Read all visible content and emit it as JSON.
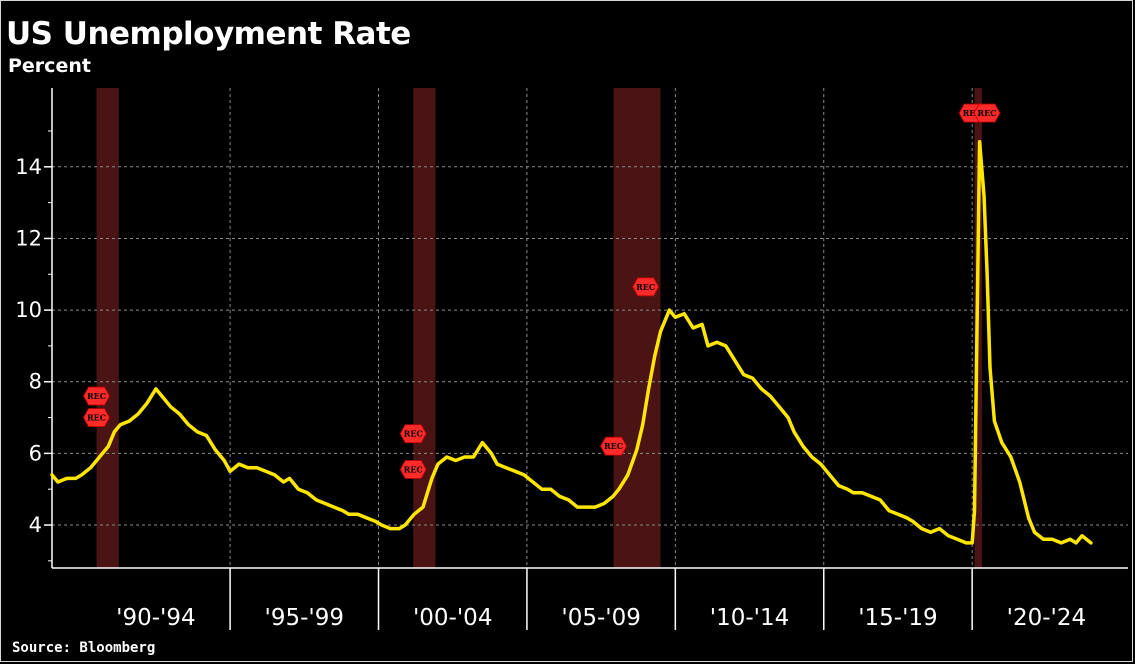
{
  "header": {
    "title": "US Unemployment Rate",
    "subtitle": "Percent"
  },
  "footer": {
    "source": "Source: Bloomberg"
  },
  "colors": {
    "background": "#000000",
    "line": "#ffe600",
    "recession_shade": "#4a1414",
    "rec_marker": "#ff2a2a",
    "grid": "#8a8a8a"
  },
  "chart_data": {
    "type": "line",
    "title": "US Unemployment Rate",
    "ylabel": "Percent",
    "xlabel": "",
    "ylim": [
      2.8,
      16.2
    ],
    "xlim": [
      1989.0,
      2025.25
    ],
    "y_ticks": [
      4,
      6,
      8,
      10,
      12,
      14
    ],
    "x_period_labels": [
      "'90-'94",
      "'95-'99",
      "'00-'04",
      "'05-'09",
      "'10-'14",
      "'15-'19",
      "'20-'24"
    ],
    "x_period_dividers": [
      1995,
      2000,
      2005,
      2010,
      2015,
      2020
    ],
    "grid": true,
    "recessions": [
      [
        1990.5,
        1991.25
      ],
      [
        2001.17,
        2001.92
      ],
      [
        2007.92,
        2009.5
      ],
      [
        2020.08,
        2020.33
      ]
    ],
    "annotations": [
      {
        "label": "REC",
        "x": 1990.5,
        "y": 7.6
      },
      {
        "label": "REC",
        "x": 1990.5,
        "y": 7.0
      },
      {
        "label": "REC",
        "x": 2001.17,
        "y": 6.55
      },
      {
        "label": "REC",
        "x": 2001.17,
        "y": 5.55
      },
      {
        "label": "REC",
        "x": 2007.92,
        "y": 6.2
      },
      {
        "label": "REC",
        "x": 2009.0,
        "y": 10.65
      },
      {
        "label": "REC",
        "x": 2020.0,
        "y": 15.5
      },
      {
        "label": "REC",
        "x": 2020.5,
        "y": 15.5
      }
    ],
    "series": [
      {
        "values": [
          [
            1989.0,
            5.4
          ],
          [
            1989.2,
            5.2
          ],
          [
            1989.5,
            5.3
          ],
          [
            1989.8,
            5.3
          ],
          [
            1990.0,
            5.4
          ],
          [
            1990.3,
            5.6
          ],
          [
            1990.6,
            5.9
          ],
          [
            1990.9,
            6.2
          ],
          [
            1991.1,
            6.6
          ],
          [
            1991.3,
            6.8
          ],
          [
            1991.6,
            6.9
          ],
          [
            1991.9,
            7.1
          ],
          [
            1992.2,
            7.4
          ],
          [
            1992.5,
            7.8
          ],
          [
            1992.8,
            7.5
          ],
          [
            1993.0,
            7.3
          ],
          [
            1993.3,
            7.1
          ],
          [
            1993.6,
            6.8
          ],
          [
            1993.9,
            6.6
          ],
          [
            1994.2,
            6.5
          ],
          [
            1994.5,
            6.1
          ],
          [
            1994.8,
            5.8
          ],
          [
            1995.0,
            5.5
          ],
          [
            1995.3,
            5.7
          ],
          [
            1995.6,
            5.6
          ],
          [
            1995.9,
            5.6
          ],
          [
            1996.2,
            5.5
          ],
          [
            1996.5,
            5.4
          ],
          [
            1996.8,
            5.2
          ],
          [
            1997.0,
            5.3
          ],
          [
            1997.3,
            5.0
          ],
          [
            1997.6,
            4.9
          ],
          [
            1997.9,
            4.7
          ],
          [
            1998.2,
            4.6
          ],
          [
            1998.5,
            4.5
          ],
          [
            1998.8,
            4.4
          ],
          [
            1999.0,
            4.3
          ],
          [
            1999.3,
            4.3
          ],
          [
            1999.6,
            4.2
          ],
          [
            1999.9,
            4.1
          ],
          [
            2000.1,
            4.0
          ],
          [
            2000.4,
            3.9
          ],
          [
            2000.7,
            3.9
          ],
          [
            2000.9,
            4.0
          ],
          [
            2001.2,
            4.3
          ],
          [
            2001.5,
            4.5
          ],
          [
            2001.8,
            5.3
          ],
          [
            2002.0,
            5.7
          ],
          [
            2002.3,
            5.9
          ],
          [
            2002.6,
            5.8
          ],
          [
            2002.9,
            5.9
          ],
          [
            2003.2,
            5.9
          ],
          [
            2003.5,
            6.3
          ],
          [
            2003.8,
            6.0
          ],
          [
            2004.0,
            5.7
          ],
          [
            2004.3,
            5.6
          ],
          [
            2004.6,
            5.5
          ],
          [
            2004.9,
            5.4
          ],
          [
            2005.2,
            5.2
          ],
          [
            2005.5,
            5.0
          ],
          [
            2005.8,
            5.0
          ],
          [
            2006.1,
            4.8
          ],
          [
            2006.4,
            4.7
          ],
          [
            2006.7,
            4.5
          ],
          [
            2007.0,
            4.5
          ],
          [
            2007.3,
            4.5
          ],
          [
            2007.6,
            4.6
          ],
          [
            2007.9,
            4.8
          ],
          [
            2008.1,
            5.0
          ],
          [
            2008.4,
            5.4
          ],
          [
            2008.7,
            6.1
          ],
          [
            2008.9,
            6.8
          ],
          [
            2009.1,
            7.8
          ],
          [
            2009.3,
            8.7
          ],
          [
            2009.5,
            9.4
          ],
          [
            2009.8,
            10.0
          ],
          [
            2010.0,
            9.8
          ],
          [
            2010.3,
            9.9
          ],
          [
            2010.6,
            9.5
          ],
          [
            2010.9,
            9.6
          ],
          [
            2011.1,
            9.0
          ],
          [
            2011.4,
            9.1
          ],
          [
            2011.7,
            9.0
          ],
          [
            2012.0,
            8.6
          ],
          [
            2012.3,
            8.2
          ],
          [
            2012.6,
            8.1
          ],
          [
            2012.9,
            7.8
          ],
          [
            2013.2,
            7.6
          ],
          [
            2013.5,
            7.3
          ],
          [
            2013.8,
            7.0
          ],
          [
            2014.0,
            6.6
          ],
          [
            2014.3,
            6.2
          ],
          [
            2014.6,
            5.9
          ],
          [
            2014.9,
            5.7
          ],
          [
            2015.2,
            5.4
          ],
          [
            2015.5,
            5.1
          ],
          [
            2015.8,
            5.0
          ],
          [
            2016.0,
            4.9
          ],
          [
            2016.3,
            4.9
          ],
          [
            2016.6,
            4.8
          ],
          [
            2016.9,
            4.7
          ],
          [
            2017.2,
            4.4
          ],
          [
            2017.5,
            4.3
          ],
          [
            2017.8,
            4.2
          ],
          [
            2018.0,
            4.1
          ],
          [
            2018.3,
            3.9
          ],
          [
            2018.6,
            3.8
          ],
          [
            2018.9,
            3.9
          ],
          [
            2019.2,
            3.7
          ],
          [
            2019.5,
            3.6
          ],
          [
            2019.8,
            3.5
          ],
          [
            2020.0,
            3.5
          ],
          [
            2020.08,
            4.4
          ],
          [
            2020.25,
            14.7
          ],
          [
            2020.4,
            13.2
          ],
          [
            2020.5,
            11.1
          ],
          [
            2020.6,
            8.4
          ],
          [
            2020.75,
            6.9
          ],
          [
            2021.0,
            6.3
          ],
          [
            2021.3,
            5.9
          ],
          [
            2021.6,
            5.2
          ],
          [
            2021.9,
            4.2
          ],
          [
            2022.1,
            3.8
          ],
          [
            2022.4,
            3.6
          ],
          [
            2022.7,
            3.6
          ],
          [
            2023.0,
            3.5
          ],
          [
            2023.3,
            3.6
          ],
          [
            2023.5,
            3.5
          ],
          [
            2023.7,
            3.7
          ],
          [
            2023.85,
            3.6
          ],
          [
            2024.0,
            3.5
          ]
        ]
      }
    ]
  }
}
